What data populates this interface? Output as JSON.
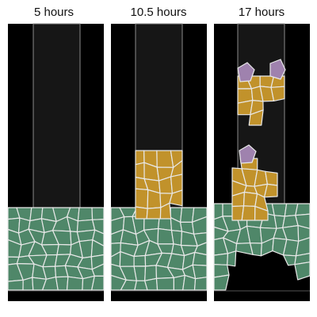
{
  "panels": [
    {
      "label": "5 hours",
      "time_hours": 5
    },
    {
      "label": "10.5 hours",
      "time_hours": 10.5
    },
    {
      "label": "17 hours",
      "time_hours": 17
    }
  ],
  "colors": {
    "background": "#ffffff",
    "outside": "#000000",
    "channel": "#161616",
    "channel_wall": "#8a8a8a",
    "green_cells": "#4f8769",
    "gold_cells": "#c1922b",
    "purple_cells": "#9f82ae",
    "cell_border": "#e8e8e8"
  }
}
